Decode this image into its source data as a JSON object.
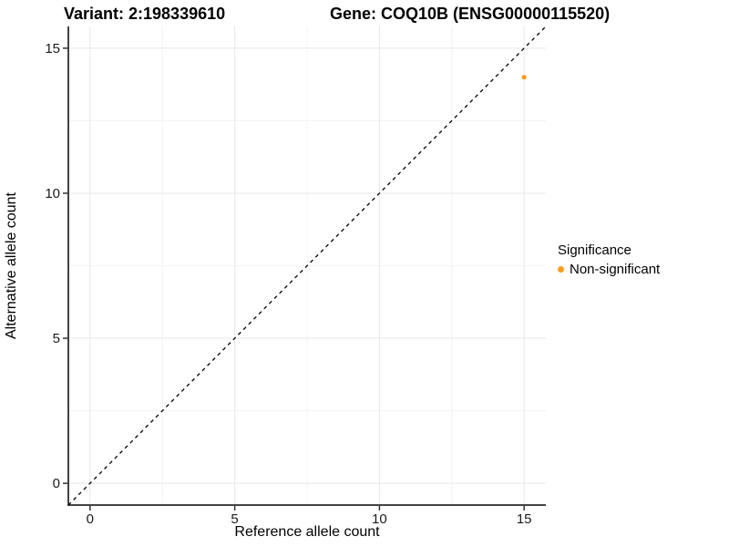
{
  "titles": {
    "variant": "Variant: 2:198339610",
    "gene": "Gene: COQ10B (ENSG00000115520)"
  },
  "chart_data": {
    "type": "scatter",
    "xlabel": "Reference allele count",
    "ylabel": "Alternative allele count",
    "xlim": [
      -0.75,
      15.75
    ],
    "ylim": [
      -0.75,
      15.75
    ],
    "xticks": [
      0,
      5,
      10,
      15
    ],
    "yticks": [
      0,
      5,
      10,
      15
    ],
    "minor_xticks": [
      2.5,
      7.5,
      12.5
    ],
    "minor_yticks": [
      2.5,
      7.5,
      12.5
    ],
    "grid": "on",
    "reference_line": {
      "type": "identity",
      "style": "dashed",
      "color": "#000000"
    },
    "series": [
      {
        "name": "Non-significant",
        "color": "#FA9E1E",
        "marker": "circle",
        "points": [
          {
            "x": 15,
            "y": 14
          }
        ]
      }
    ],
    "legend": {
      "title": "Significance",
      "position": "right",
      "items": [
        {
          "label": "Non-significant",
          "color": "#FA9E1E"
        }
      ]
    }
  },
  "colors": {
    "background": "#FFFFFF",
    "axis_line": "#434343",
    "tick_mark": "#333333",
    "grid_major": "#E8E8E8",
    "grid_minor": "#F3F3F3",
    "text": "#000000",
    "tick_label": "#1A1A1A"
  }
}
